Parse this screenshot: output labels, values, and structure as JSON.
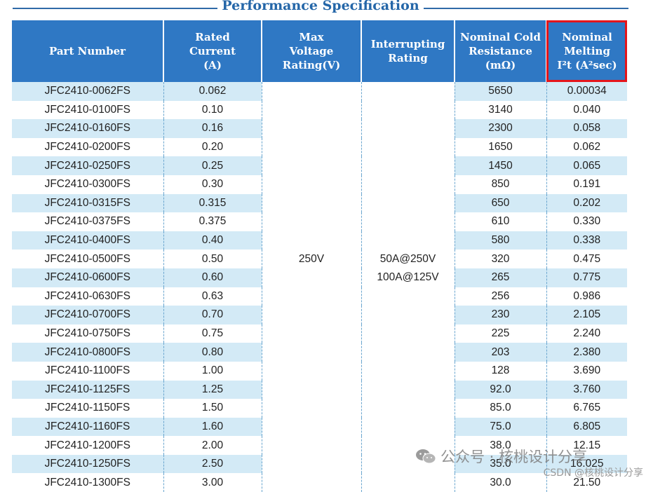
{
  "title": "Performance Specification",
  "headers": {
    "part": "Part Number",
    "rated": [
      "Rated",
      "Current",
      "(A)"
    ],
    "voltage": [
      "Max",
      "Voltage",
      "Rating(V)"
    ],
    "interrupt": [
      "Interrupting",
      "Rating"
    ],
    "cold": [
      "Nominal Cold",
      "Resistance",
      "(mΩ)"
    ],
    "melt": [
      "Nominal",
      "Melting",
      "I²t (A²sec)"
    ]
  },
  "highlight_color": "#e5151b",
  "header_color": "#2f78c4",
  "stripe_color": "#d3eaf6",
  "voltage_value": "250V",
  "interrupt_value": [
    "50A@250V",
    "100A@125V"
  ],
  "rows": [
    {
      "part": "JFC2410-0062FS",
      "current": "0.062",
      "res": "5650",
      "melt": "0.00034"
    },
    {
      "part": "JFC2410-0100FS",
      "current": "0.10",
      "res": "3140",
      "melt": "0.040"
    },
    {
      "part": "JFC2410-0160FS",
      "current": "0.16",
      "res": "2300",
      "melt": "0.058"
    },
    {
      "part": "JFC2410-0200FS",
      "current": "0.20",
      "res": "1650",
      "melt": "0.062"
    },
    {
      "part": "JFC2410-0250FS",
      "current": "0.25",
      "res": "1450",
      "melt": "0.065"
    },
    {
      "part": "JFC2410-0300FS",
      "current": "0.30",
      "res": "850",
      "melt": "0.191"
    },
    {
      "part": "JFC2410-0315FS",
      "current": "0.315",
      "res": "650",
      "melt": "0.202"
    },
    {
      "part": "JFC2410-0375FS",
      "current": "0.375",
      "res": "610",
      "melt": "0.330"
    },
    {
      "part": "JFC2410-0400FS",
      "current": "0.40",
      "res": "580",
      "melt": "0.338"
    },
    {
      "part": "JFC2410-0500FS",
      "current": "0.50",
      "res": "320",
      "melt": "0.475"
    },
    {
      "part": "JFC2410-0600FS",
      "current": "0.60",
      "res": "265",
      "melt": "0.775"
    },
    {
      "part": "JFC2410-0630FS",
      "current": "0.63",
      "res": "256",
      "melt": "0.986"
    },
    {
      "part": "JFC2410-0700FS",
      "current": "0.70",
      "res": "230",
      "melt": "2.105"
    },
    {
      "part": "JFC2410-0750FS",
      "current": "0.75",
      "res": "225",
      "melt": "2.240"
    },
    {
      "part": "JFC2410-0800FS",
      "current": "0.80",
      "res": "203",
      "melt": "2.380"
    },
    {
      "part": "JFC2410-1100FS",
      "current": "1.00",
      "res": "128",
      "melt": "3.690"
    },
    {
      "part": "JFC2410-1125FS",
      "current": "1.25",
      "res": "92.0",
      "melt": "3.760"
    },
    {
      "part": "JFC2410-1150FS",
      "current": "1.50",
      "res": "85.0",
      "melt": "6.765"
    },
    {
      "part": "JFC2410-1160FS",
      "current": "1.60",
      "res": "75.0",
      "melt": "6.805"
    },
    {
      "part": "JFC2410-1200FS",
      "current": "2.00",
      "res": "38.0",
      "melt": "12.15"
    },
    {
      "part": "JFC2410-1250FS",
      "current": "2.50",
      "res": "35.0",
      "melt": "16.025"
    },
    {
      "part": "JFC2410-1300FS",
      "current": "3.00",
      "res": "30.0",
      "melt": "21.50"
    }
  ],
  "watermark": "公众号 · 核桃设计分享",
  "watermark_icon": "wechat-icon",
  "csdn": "CSDN @核桃设计分享"
}
